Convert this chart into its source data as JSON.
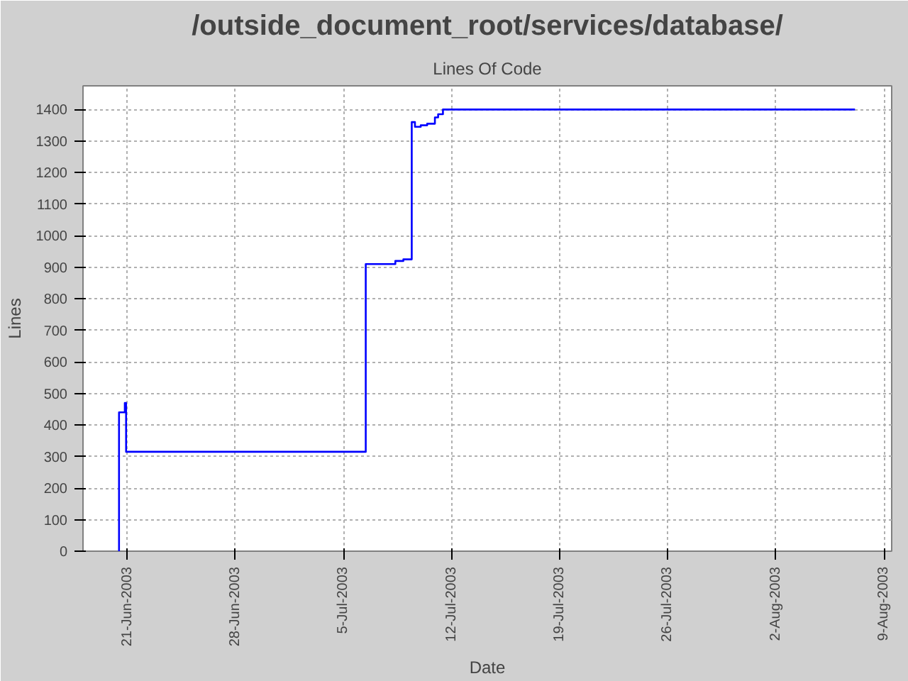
{
  "chart_data": {
    "type": "step",
    "title": "/outside_document_root/services/database/",
    "subtitle": "Lines Of Code",
    "xlabel": "Date",
    "ylabel": "Lines",
    "x": [
      "2003-06-20T11:00",
      "2003-06-20T11:00",
      "2003-06-20T20:00",
      "2003-06-20T22:00",
      "2003-07-06T10:30",
      "2003-07-08T08:30",
      "2003-07-08T21:00",
      "2003-07-09T10:00",
      "2003-07-09T15:00",
      "2003-07-10T00:00",
      "2003-07-10T10:00",
      "2003-07-10T22:00",
      "2003-07-11T03:00",
      "2003-07-11T10:30",
      "2003-08-07T03:00"
    ],
    "series": [
      {
        "color": "#0000ff",
        "values": [
          0,
          440,
          470,
          315,
          910,
          920,
          925,
          1360,
          1345,
          1350,
          1355,
          1375,
          1385,
          1400,
          1400
        ]
      }
    ],
    "xlim": [
      "2003-06-18T03:00",
      "2003-08-09T12:00"
    ],
    "xticks": [
      {
        "value": "2003-06-21",
        "label": "21-Jun-2003"
      },
      {
        "value": "2003-06-28",
        "label": "28-Jun-2003"
      },
      {
        "value": "2003-07-05",
        "label": "5-Jul-2003"
      },
      {
        "value": "2003-07-12",
        "label": "12-Jul-2003"
      },
      {
        "value": "2003-07-19",
        "label": "19-Jul-2003"
      },
      {
        "value": "2003-07-26",
        "label": "26-Jul-2003"
      },
      {
        "value": "2003-08-02",
        "label": "2-Aug-2003"
      },
      {
        "value": "2003-08-09",
        "label": "9-Aug-2003"
      }
    ],
    "ylim": [
      0,
      1475
    ],
    "yticks": [
      0,
      100,
      200,
      300,
      400,
      500,
      600,
      700,
      800,
      900,
      1000,
      1100,
      1200,
      1300,
      1400
    ],
    "grid": true,
    "line_style": "solid"
  }
}
